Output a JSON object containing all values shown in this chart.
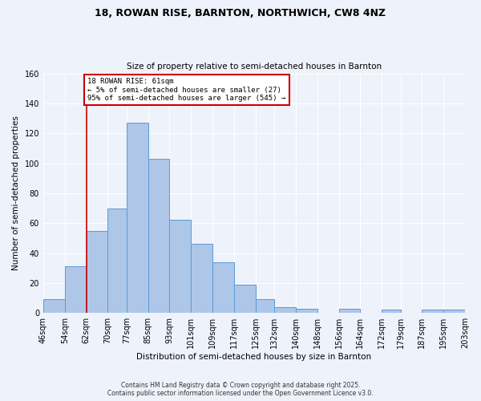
{
  "title": "18, ROWAN RISE, BARNTON, NORTHWICH, CW8 4NZ",
  "subtitle": "Size of property relative to semi-detached houses in Barnton",
  "xlabel": "Distribution of semi-detached houses by size in Barnton",
  "ylabel": "Number of semi-detached properties",
  "bin_labels": [
    "46sqm",
    "54sqm",
    "62sqm",
    "70sqm",
    "77sqm",
    "85sqm",
    "93sqm",
    "101sqm",
    "109sqm",
    "117sqm",
    "125sqm",
    "132sqm",
    "140sqm",
    "148sqm",
    "156sqm",
    "164sqm",
    "172sqm",
    "179sqm",
    "187sqm",
    "195sqm",
    "203sqm"
  ],
  "bin_edges": [
    46,
    54,
    62,
    70,
    77,
    85,
    93,
    101,
    109,
    117,
    125,
    132,
    140,
    148,
    156,
    164,
    172,
    179,
    187,
    195,
    203
  ],
  "bar_heights": [
    9,
    31,
    55,
    70,
    127,
    103,
    62,
    46,
    34,
    19,
    9,
    4,
    3,
    0,
    3,
    0,
    2,
    0,
    2,
    2
  ],
  "bar_color": "#aec6e8",
  "bar_edge_color": "#5b9bd5",
  "property_line_x": 62,
  "annotation_title": "18 ROWAN RISE: 61sqm",
  "annotation_line1": "← 5% of semi-detached houses are smaller (27)",
  "annotation_line2": "95% of semi-detached houses are larger (545) →",
  "annotation_box_color": "#ffffff",
  "annotation_box_edge_color": "#cc0000",
  "property_line_color": "#cc0000",
  "ylim": [
    0,
    160
  ],
  "yticks": [
    0,
    20,
    40,
    60,
    80,
    100,
    120,
    140,
    160
  ],
  "background_color": "#eef2fb",
  "grid_color": "#ffffff",
  "footer_line1": "Contains HM Land Registry data © Crown copyright and database right 2025.",
  "footer_line2": "Contains public sector information licensed under the Open Government Licence v3.0."
}
